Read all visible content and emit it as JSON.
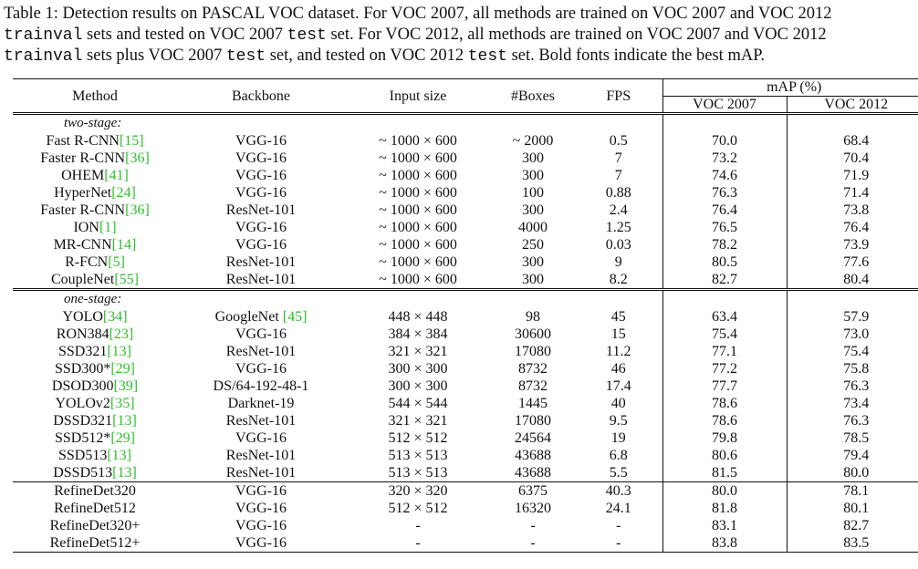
{
  "caption": {
    "line1": "Table 1: Detection results on PASCAL VOC dataset. For VOC 2007, all methods are trained on VOC 2007 and VOC 2012",
    "line2_mono1": "trainval",
    "line2_text": " sets and tested on VOC 2007 ",
    "line2_mono2": "test",
    "line2_text2": " set. For VOC 2012, all methods are trained on VOC 2007 and VOC 2012",
    "line3_mono1": "trainval",
    "line3_text": " sets plus VOC 2007 ",
    "line3_mono2": "test",
    "line3_text2": " set, and tested on VOC 2012 ",
    "line3_mono3": "test",
    "line3_text3": " set. Bold fonts indicate the best mAP."
  },
  "headers": {
    "method": "Method",
    "backbone": "Backbone",
    "input_size": "Input size",
    "boxes": "#Boxes",
    "fps": "FPS",
    "map": "mAP (%)",
    "voc2007": "VOC 2007",
    "voc2012": "VOC 2012"
  },
  "groups": {
    "two_stage": "two-stage:",
    "one_stage": "one-stage:"
  },
  "rows_two_stage": [
    {
      "name": "Fast R-CNN",
      "ref": "[15]",
      "backbone": "VGG-16",
      "input": "~ 1000 × 600",
      "boxes": "~ 2000",
      "fps": "0.5",
      "voc07": "70.0",
      "voc12": "68.4"
    },
    {
      "name": "Faster R-CNN",
      "ref": "[36]",
      "backbone": "VGG-16",
      "input": "~ 1000 × 600",
      "boxes": "300",
      "fps": "7",
      "voc07": "73.2",
      "voc12": "70.4"
    },
    {
      "name": "OHEM",
      "ref": "[41]",
      "backbone": "VGG-16",
      "input": "~ 1000 × 600",
      "boxes": "300",
      "fps": "7",
      "voc07": "74.6",
      "voc12": "71.9"
    },
    {
      "name": "HyperNet",
      "ref": "[24]",
      "backbone": "VGG-16",
      "input": "~ 1000 × 600",
      "boxes": "100",
      "fps": "0.88",
      "voc07": "76.3",
      "voc12": "71.4"
    },
    {
      "name": "Faster R-CNN",
      "ref": "[36]",
      "backbone": "ResNet-101",
      "input": "~ 1000 × 600",
      "boxes": "300",
      "fps": "2.4",
      "voc07": "76.4",
      "voc12": "73.8"
    },
    {
      "name": "ION",
      "ref": "[1]",
      "backbone": "VGG-16",
      "input": "~ 1000 × 600",
      "boxes": "4000",
      "fps": "1.25",
      "voc07": "76.5",
      "voc12": "76.4"
    },
    {
      "name": "MR-CNN",
      "ref": "[14]",
      "backbone": "VGG-16",
      "input": "~ 1000 × 600",
      "boxes": "250",
      "fps": "0.03",
      "voc07": "78.2",
      "voc12": "73.9"
    },
    {
      "name": "R-FCN",
      "ref": "[5]",
      "backbone": "ResNet-101",
      "input": "~ 1000 × 600",
      "boxes": "300",
      "fps": "9",
      "voc07": "80.5",
      "voc12": "77.6"
    },
    {
      "name": "CoupleNet",
      "ref": "[55]",
      "backbone": "ResNet-101",
      "input": "~ 1000 × 600",
      "boxes": "300",
      "fps": "8.2",
      "voc07": "82.7",
      "voc12": "80.4"
    }
  ],
  "rows_one_stage": [
    {
      "name": "YOLO",
      "ref": "[34]",
      "backbone": "GoogleNet",
      "backbone_ref": " [45]",
      "input": "448 × 448",
      "boxes": "98",
      "fps": "45",
      "voc07": "63.4",
      "voc12": "57.9"
    },
    {
      "name": "RON384",
      "ref": "[23]",
      "backbone": "VGG-16",
      "input": "384 × 384",
      "boxes": "30600",
      "fps": "15",
      "voc07": "75.4",
      "voc12": "73.0"
    },
    {
      "name": "SSD321",
      "ref": "[13]",
      "backbone": "ResNet-101",
      "input": "321 × 321",
      "boxes": "17080",
      "fps": "11.2",
      "voc07": "77.1",
      "voc12": "75.4"
    },
    {
      "name": "SSD300*",
      "ref": "[29]",
      "backbone": "VGG-16",
      "input": "300 × 300",
      "boxes": "8732",
      "fps": "46",
      "voc07": "77.2",
      "voc12": "75.8"
    },
    {
      "name": "DSOD300",
      "ref": "[39]",
      "backbone": "DS/64-192-48-1",
      "input": "300 × 300",
      "boxes": "8732",
      "fps": "17.4",
      "voc07": "77.7",
      "voc12": "76.3"
    },
    {
      "name": "YOLOv2",
      "ref": "[35]",
      "backbone": "Darknet-19",
      "input": "544 × 544",
      "boxes": "1445",
      "fps": "40",
      "voc07": "78.6",
      "voc12": "73.4"
    },
    {
      "name": "DSSD321",
      "ref": "[13]",
      "backbone": "ResNet-101",
      "input": "321 × 321",
      "boxes": "17080",
      "fps": "9.5",
      "voc07": "78.6",
      "voc12": "76.3"
    },
    {
      "name": "SSD512*",
      "ref": "[29]",
      "backbone": "VGG-16",
      "input": "512 × 512",
      "boxes": "24564",
      "fps": "19",
      "voc07": "79.8",
      "voc12": "78.5"
    },
    {
      "name": "SSD513",
      "ref": "[13]",
      "backbone": "ResNet-101",
      "input": "513 × 513",
      "boxes": "43688",
      "fps": "6.8",
      "voc07": "80.6",
      "voc12": "79.4"
    },
    {
      "name": "DSSD513",
      "ref": "[13]",
      "backbone": "ResNet-101",
      "input": "513 × 513",
      "boxes": "43688",
      "fps": "5.5",
      "voc07": "81.5",
      "voc12": "80.0"
    }
  ],
  "rows_refinedet": [
    {
      "name": "RefineDet320",
      "ref": "",
      "backbone": "VGG-16",
      "input": "320 × 320",
      "boxes": "6375",
      "fps": "40.3",
      "voc07": "80.0",
      "voc12": "78.1"
    },
    {
      "name": "RefineDet512",
      "ref": "",
      "backbone": "VGG-16",
      "input": "512 × 512",
      "boxes": "16320",
      "fps": "24.1",
      "voc07": "81.8",
      "voc12": "80.1"
    },
    {
      "name": "RefineDet320+",
      "ref": "",
      "backbone": "VGG-16",
      "input": "-",
      "boxes": "-",
      "fps": "-",
      "voc07": "83.1",
      "voc12": "82.7"
    },
    {
      "name": "RefineDet512+",
      "ref": "",
      "backbone": "VGG-16",
      "input": "-",
      "boxes": "-",
      "fps": "-",
      "voc07": "83.8",
      "voc12": "83.5",
      "bold": true
    }
  ],
  "colors": {
    "reference": "#2ec02e",
    "text": "#111111"
  }
}
